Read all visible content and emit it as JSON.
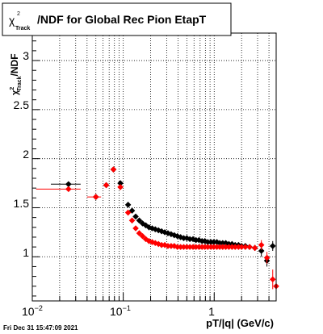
{
  "title_box": {
    "title": "/NDF for Global Rec Pion EtapT",
    "chi": "χ",
    "sup": "2",
    "sub": "Track"
  },
  "timestamp": "Fri Dec 31 15:47:09 2021",
  "colors": {
    "series_black": "#000000",
    "series_red": "#ff0000",
    "frame": "#000000",
    "grid": "#000000",
    "background": "#ffffff"
  },
  "chart_data": {
    "type": "scatter",
    "title": "/NDF for Global Rec Pion EtapT",
    "xlabel": "pT/|q| (GeV/c)",
    "ylabel": "/NDF",
    "ylabel_chi": "χ",
    "ylabel_sup": "2",
    "ylabel_sub": "Track",
    "x_scale": "log",
    "xlim": [
      0.01,
      4.8
    ],
    "ylim": [
      0.55,
      3.28
    ],
    "grid": true,
    "x_ticks": [
      {
        "value": 0.01,
        "base": "10",
        "exp": "−2"
      },
      {
        "value": 0.1,
        "base": "10",
        "exp": "−1"
      },
      {
        "value": 1,
        "base": "1",
        "exp": ""
      }
    ],
    "y_ticks": [
      {
        "value": 1,
        "label": "1"
      },
      {
        "value": 1.5,
        "label": "1.5"
      },
      {
        "value": 2,
        "label": "2"
      },
      {
        "value": 2.5,
        "label": "2.5"
      },
      {
        "value": 3,
        "label": "3"
      }
    ],
    "series": [
      {
        "color": "#000000",
        "x": [
          0.025,
          0.05,
          0.065,
          0.078,
          0.093,
          0.113,
          0.125,
          0.137,
          0.15,
          0.163,
          0.177,
          0.192,
          0.208,
          0.225,
          0.244,
          0.264,
          0.286,
          0.31,
          0.336,
          0.364,
          0.394,
          0.427,
          0.462,
          0.5,
          0.54,
          0.585,
          0.63,
          0.68,
          0.735,
          0.79,
          0.85,
          0.92,
          0.99,
          1.07,
          1.15,
          1.24,
          1.34,
          1.45,
          1.57,
          1.7,
          1.85,
          2.0,
          2.2,
          2.45,
          2.8,
          3.3,
          3.8,
          4.4
        ],
        "y": [
          1.74,
          1.61,
          1.73,
          1.89,
          1.75,
          1.53,
          1.47,
          1.41,
          1.37,
          1.34,
          1.32,
          1.3,
          1.29,
          1.28,
          1.27,
          1.26,
          1.25,
          1.24,
          1.23,
          1.22,
          1.21,
          1.2,
          1.19,
          1.19,
          1.18,
          1.18,
          1.17,
          1.17,
          1.16,
          1.16,
          1.15,
          1.15,
          1.15,
          1.15,
          1.14,
          1.14,
          1.14,
          1.13,
          1.13,
          1.12,
          1.12,
          1.11,
          1.11,
          1.1,
          1.09,
          1.06,
          0.96,
          1.11
        ],
        "xerr": [
          [
            0.009,
            0.009
          ],
          null,
          null,
          null,
          null,
          null,
          null,
          null,
          null,
          null,
          null,
          null,
          null,
          null,
          null,
          null,
          null,
          null,
          null,
          null,
          null,
          null,
          null,
          null,
          null,
          null,
          null,
          null,
          null,
          null,
          null,
          null,
          null,
          null,
          null,
          null,
          null,
          null,
          null,
          null,
          null,
          null,
          null,
          null,
          null,
          null,
          null,
          null
        ],
        "yerr": [
          0,
          0,
          0,
          0,
          0,
          0,
          0,
          0,
          0,
          0,
          0,
          0,
          0,
          0,
          0,
          0,
          0,
          0,
          0,
          0,
          0,
          0,
          0,
          0,
          0,
          0,
          0,
          0,
          0,
          0,
          0,
          0,
          0,
          0,
          0,
          0,
          0,
          0,
          0,
          0,
          0,
          0,
          0,
          0,
          0.03,
          0.06,
          0.06,
          0.05
        ]
      },
      {
        "color": "#ff0000",
        "x": [
          0.025,
          0.05,
          0.065,
          0.078,
          0.093,
          0.113,
          0.125,
          0.137,
          0.15,
          0.163,
          0.177,
          0.192,
          0.208,
          0.225,
          0.244,
          0.264,
          0.286,
          0.31,
          0.336,
          0.364,
          0.394,
          0.427,
          0.462,
          0.5,
          0.54,
          0.585,
          0.63,
          0.68,
          0.735,
          0.79,
          0.85,
          0.92,
          0.99,
          1.07,
          1.15,
          1.24,
          1.34,
          1.45,
          1.57,
          1.7,
          1.85,
          2.0,
          2.2,
          2.45,
          2.8,
          3.3,
          3.8,
          4.4,
          4.8
        ],
        "y": [
          1.69,
          1.61,
          1.73,
          1.89,
          1.71,
          1.45,
          1.37,
          1.29,
          1.24,
          1.21,
          1.18,
          1.16,
          1.15,
          1.14,
          1.13,
          1.12,
          1.12,
          1.11,
          1.11,
          1.11,
          1.1,
          1.1,
          1.1,
          1.1,
          1.1,
          1.1,
          1.1,
          1.1,
          1.1,
          1.1,
          1.1,
          1.1,
          1.1,
          1.1,
          1.1,
          1.1,
          1.1,
          1.1,
          1.1,
          1.1,
          1.1,
          1.1,
          1.1,
          1.1,
          1.09,
          1.12,
          0.99,
          0.77,
          0.7
        ],
        "xerr": [
          [
            0.014,
            0.009
          ],
          [
            0.01,
            0.007
          ],
          null,
          null,
          null,
          null,
          null,
          null,
          null,
          null,
          null,
          null,
          null,
          null,
          null,
          null,
          null,
          null,
          null,
          null,
          null,
          null,
          null,
          null,
          null,
          null,
          null,
          null,
          null,
          null,
          null,
          null,
          null,
          null,
          null,
          null,
          null,
          null,
          null,
          null,
          null,
          null,
          null,
          null,
          null,
          null,
          null,
          null,
          null
        ],
        "yerr": [
          0,
          0,
          0,
          0,
          0,
          0,
          0,
          0,
          0,
          0,
          0,
          0,
          0,
          0,
          0,
          0,
          0,
          0,
          0,
          0,
          0,
          0,
          0,
          0,
          0,
          0,
          0,
          0,
          0,
          0,
          0,
          0,
          0,
          0,
          0,
          0,
          0,
          0,
          0,
          0,
          0,
          0,
          0,
          0,
          0.03,
          0.05,
          0.06,
          0.1,
          0.1
        ]
      }
    ]
  }
}
